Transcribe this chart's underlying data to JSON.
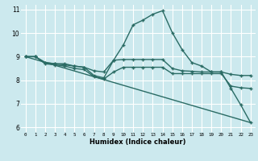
{
  "xlabel": "Humidex (Indice chaleur)",
  "xlim": [
    -0.5,
    23.5
  ],
  "ylim": [
    5.8,
    11.2
  ],
  "yticks": [
    6,
    7,
    8,
    9,
    10,
    11
  ],
  "xticks": [
    0,
    1,
    2,
    3,
    4,
    5,
    6,
    7,
    8,
    9,
    10,
    11,
    12,
    13,
    14,
    15,
    16,
    17,
    18,
    19,
    20,
    21,
    22,
    23
  ],
  "bg_color": "#cce9ee",
  "grid_color": "#ffffff",
  "line_color": "#2a6b64",
  "lines": [
    {
      "x": [
        0,
        1,
        2,
        3,
        4,
        5,
        6,
        7,
        8,
        9,
        10,
        11,
        12,
        13,
        14,
        15,
        16,
        17,
        18,
        19,
        20,
        21,
        22,
        23
      ],
      "y": [
        9.0,
        9.0,
        8.75,
        8.7,
        8.7,
        8.6,
        8.55,
        8.2,
        8.1,
        8.85,
        9.5,
        10.35,
        10.55,
        10.8,
        10.95,
        10.02,
        9.3,
        8.75,
        8.6,
        8.35,
        8.35,
        7.65,
        6.95,
        6.2
      ],
      "marker": true,
      "linewidth": 1.0
    },
    {
      "x": [
        0,
        1,
        2,
        3,
        4,
        5,
        6,
        7,
        8,
        9,
        10,
        11,
        12,
        13,
        14,
        15,
        16,
        17,
        18,
        19,
        20,
        21,
        22,
        23
      ],
      "y": [
        9.0,
        9.0,
        8.75,
        8.7,
        8.65,
        8.6,
        8.55,
        8.4,
        8.35,
        8.85,
        8.88,
        8.88,
        8.88,
        8.88,
        8.88,
        8.5,
        8.4,
        8.38,
        8.35,
        8.35,
        8.35,
        8.25,
        8.2,
        8.2
      ],
      "marker": true,
      "linewidth": 1.0
    },
    {
      "x": [
        0,
        1,
        2,
        3,
        4,
        5,
        6,
        7,
        8,
        9,
        10,
        11,
        12,
        13,
        14,
        15,
        16,
        17,
        18,
        19,
        20,
        21,
        22,
        23
      ],
      "y": [
        9.0,
        9.0,
        8.7,
        8.65,
        8.6,
        8.5,
        8.45,
        8.15,
        8.05,
        8.35,
        8.55,
        8.55,
        8.55,
        8.55,
        8.55,
        8.28,
        8.28,
        8.28,
        8.28,
        8.28,
        8.28,
        7.75,
        7.68,
        7.65
      ],
      "marker": true,
      "linewidth": 1.0
    },
    {
      "x": [
        0,
        23
      ],
      "y": [
        9.0,
        6.2
      ],
      "marker": false,
      "linewidth": 1.0
    }
  ]
}
